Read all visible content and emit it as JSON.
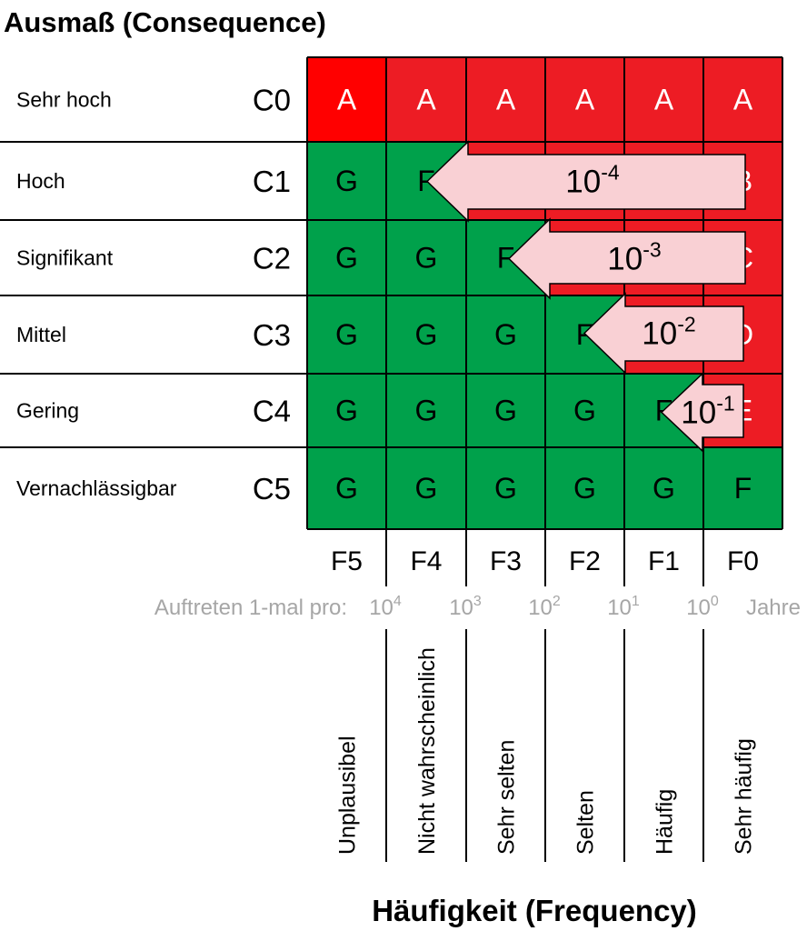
{
  "title": "Ausmaß (Consequence)",
  "x_title": "Häufigkeit (Frequency)",
  "colors": {
    "red": "#ed1c24",
    "bright_red": "#ff0000",
    "green": "#00a14b",
    "arrow_fill": "#f9d0d4"
  },
  "rows": [
    {
      "label": "Sehr hoch",
      "code": "C0",
      "cells": [
        "A",
        "A",
        "A",
        "A",
        "A",
        "A"
      ]
    },
    {
      "label": "Hoch",
      "code": "C1",
      "cells": [
        "G",
        "F",
        "",
        "",
        "",
        "B"
      ]
    },
    {
      "label": "Signifikant",
      "code": "C2",
      "cells": [
        "G",
        "G",
        "F",
        "",
        "",
        "C"
      ]
    },
    {
      "label": "Mittel",
      "code": "C3",
      "cells": [
        "G",
        "G",
        "G",
        "F",
        "",
        "D"
      ]
    },
    {
      "label": "Gering",
      "code": "C4",
      "cells": [
        "G",
        "G",
        "G",
        "G",
        "F",
        "E"
      ]
    },
    {
      "label": "Vernachlässigbar",
      "code": "C5",
      "cells": [
        "G",
        "G",
        "G",
        "G",
        "G",
        "F"
      ]
    }
  ],
  "cell_colors": [
    [
      "bright_red",
      "red",
      "red",
      "red",
      "red",
      "red"
    ],
    [
      "green",
      "green",
      "red",
      "red",
      "red",
      "red"
    ],
    [
      "green",
      "green",
      "green",
      "red",
      "red",
      "red"
    ],
    [
      "green",
      "green",
      "green",
      "green",
      "red",
      "red"
    ],
    [
      "green",
      "green",
      "green",
      "green",
      "green",
      "red"
    ],
    [
      "green",
      "green",
      "green",
      "green",
      "green",
      "green"
    ]
  ],
  "columns": [
    {
      "code": "F5",
      "label": "Unplausibel"
    },
    {
      "code": "F4",
      "label": "Nicht wahrscheinlich"
    },
    {
      "code": "F3",
      "label": "Sehr selten"
    },
    {
      "code": "F2",
      "label": "Selten"
    },
    {
      "code": "F1",
      "label": "Häufig"
    },
    {
      "code": "F0",
      "label": "Sehr häufig"
    }
  ],
  "occurrence": {
    "label": "Auftreten 1-mal pro:",
    "unit": "Jahre",
    "ticks": [
      {
        "base": "10",
        "exp": "4"
      },
      {
        "base": "10",
        "exp": "3"
      },
      {
        "base": "10",
        "exp": "2"
      },
      {
        "base": "10",
        "exp": "1"
      },
      {
        "base": "10",
        "exp": "0"
      }
    ]
  },
  "arrows": [
    {
      "row": 1,
      "base": "10",
      "exp": "-4"
    },
    {
      "row": 2,
      "base": "10",
      "exp": "-3"
    },
    {
      "row": 3,
      "base": "10",
      "exp": "-2"
    },
    {
      "row": 4,
      "base": "10",
      "exp": "-1"
    }
  ]
}
